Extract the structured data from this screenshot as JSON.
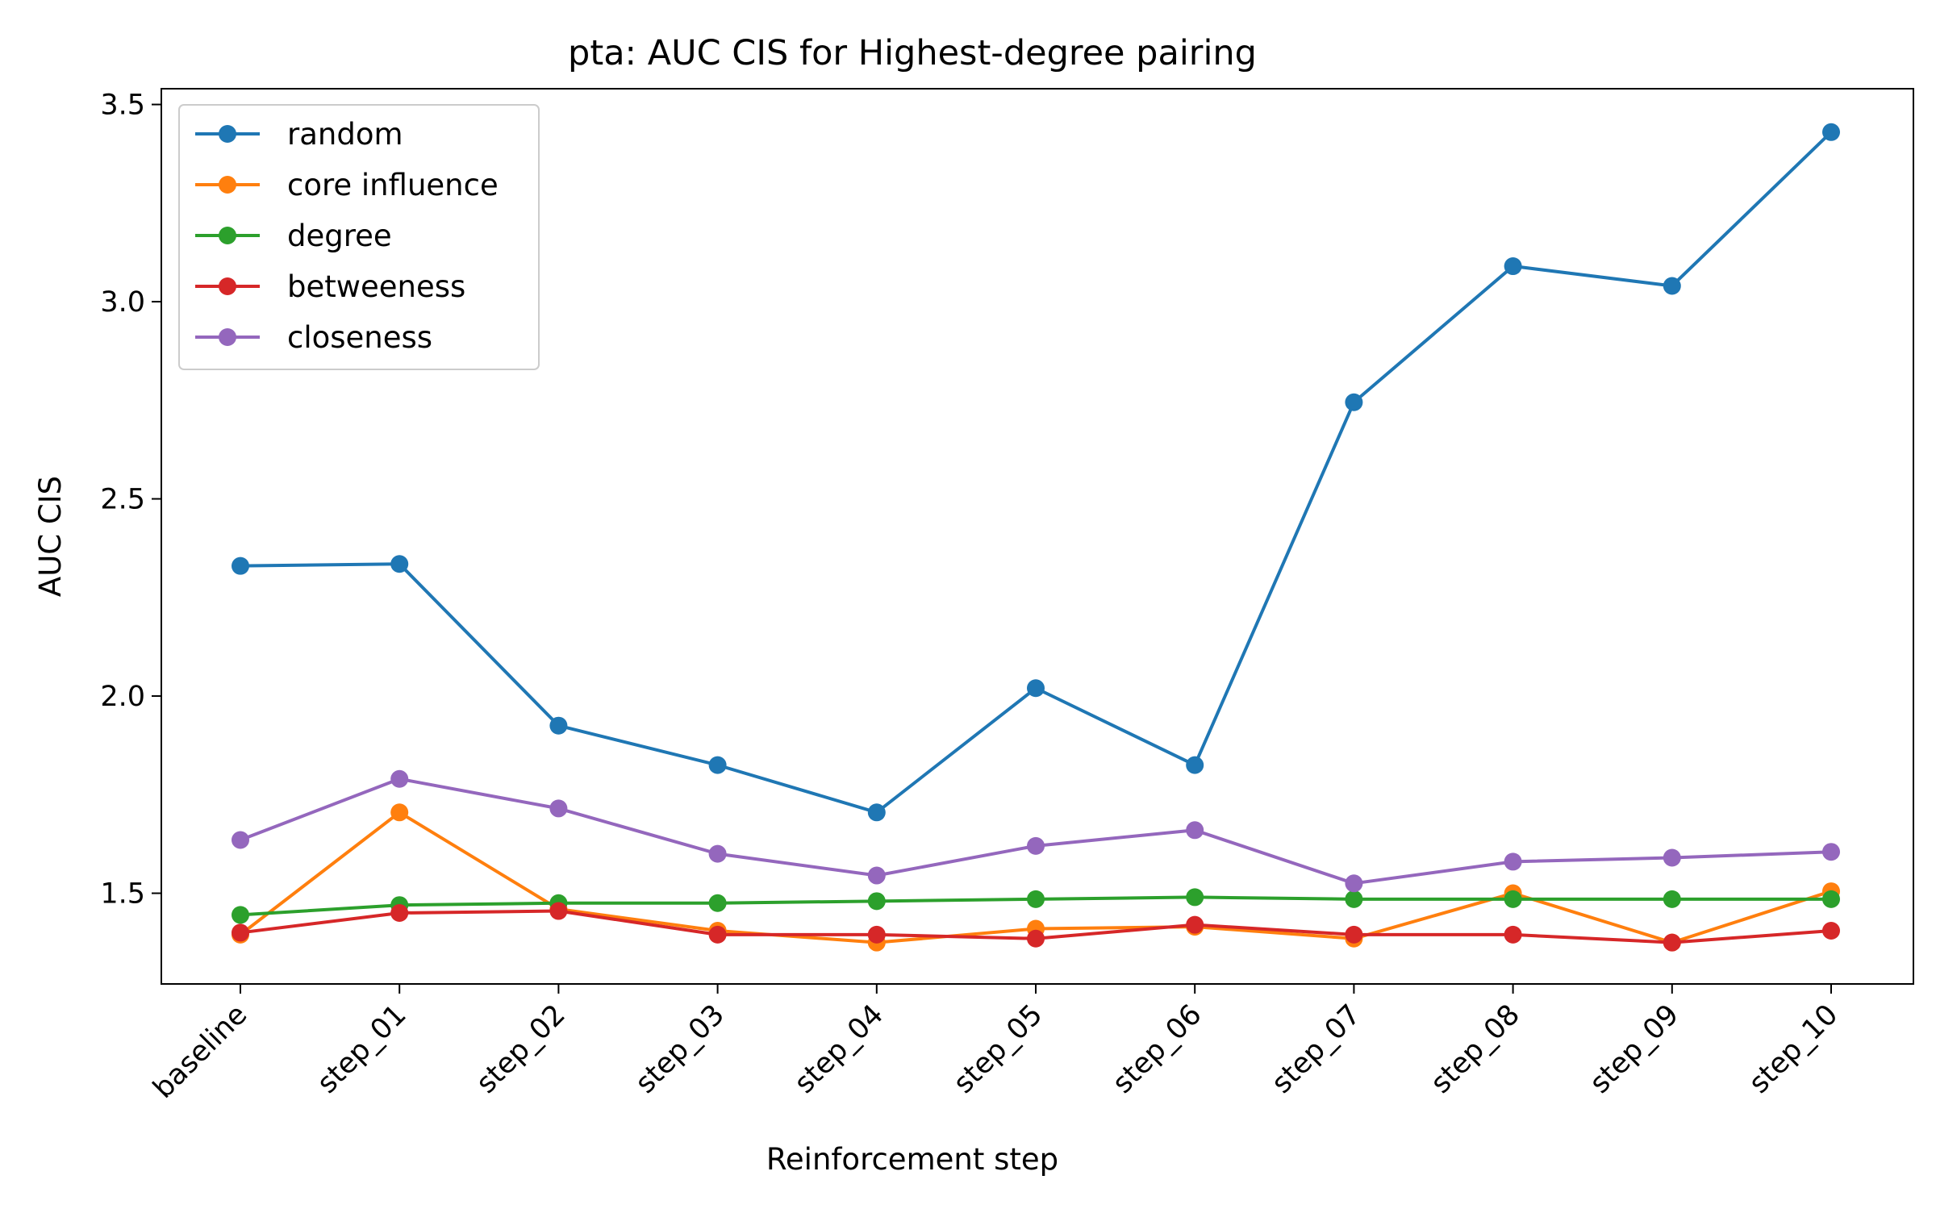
{
  "chart_data": {
    "type": "line",
    "title": "pta: AUC CIS for Highest-degree pairing",
    "xlabel": "Reinforcement step",
    "ylabel": "AUC CIS",
    "categories": [
      "baseline",
      "step_01",
      "step_02",
      "step_03",
      "step_04",
      "step_05",
      "step_06",
      "step_07",
      "step_08",
      "step_09",
      "step_10"
    ],
    "ylim": [
      1.27,
      3.54
    ],
    "yticks": [
      1.5,
      2.0,
      2.5,
      3.0,
      3.5
    ],
    "ytick_labels": [
      "1.5",
      "2.0",
      "2.5",
      "3.0",
      "3.5"
    ],
    "grid": false,
    "legend_position": "top-left",
    "series": [
      {
        "name": "random",
        "color": "#1f77b4",
        "values": [
          2.33,
          2.335,
          1.925,
          1.825,
          1.705,
          2.02,
          1.825,
          2.745,
          3.09,
          3.04,
          3.43
        ]
      },
      {
        "name": "core influence",
        "color": "#ff7f0e",
        "values": [
          1.395,
          1.705,
          1.46,
          1.405,
          1.375,
          1.41,
          1.415,
          1.385,
          1.5,
          1.375,
          1.505
        ]
      },
      {
        "name": "degree",
        "color": "#2ca02c",
        "values": [
          1.445,
          1.47,
          1.475,
          1.475,
          1.48,
          1.485,
          1.49,
          1.485,
          1.485,
          1.485,
          1.485
        ]
      },
      {
        "name": "betweeness",
        "color": "#d62728",
        "values": [
          1.4,
          1.45,
          1.455,
          1.395,
          1.395,
          1.385,
          1.42,
          1.395,
          1.395,
          1.375,
          1.405
        ]
      },
      {
        "name": "closeness",
        "color": "#9467bd",
        "values": [
          1.635,
          1.79,
          1.715,
          1.6,
          1.545,
          1.62,
          1.66,
          1.525,
          1.58,
          1.59,
          1.605
        ]
      }
    ]
  }
}
